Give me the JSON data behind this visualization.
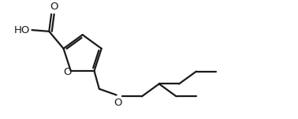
{
  "line_color": "#1a1a1a",
  "bg_color": "#ffffff",
  "line_width": 1.6,
  "font_size": 9.5,
  "figsize": [
    3.78,
    1.51
  ],
  "dpi": 100,
  "xlim": [
    0,
    10
  ],
  "ylim": [
    0,
    4
  ]
}
